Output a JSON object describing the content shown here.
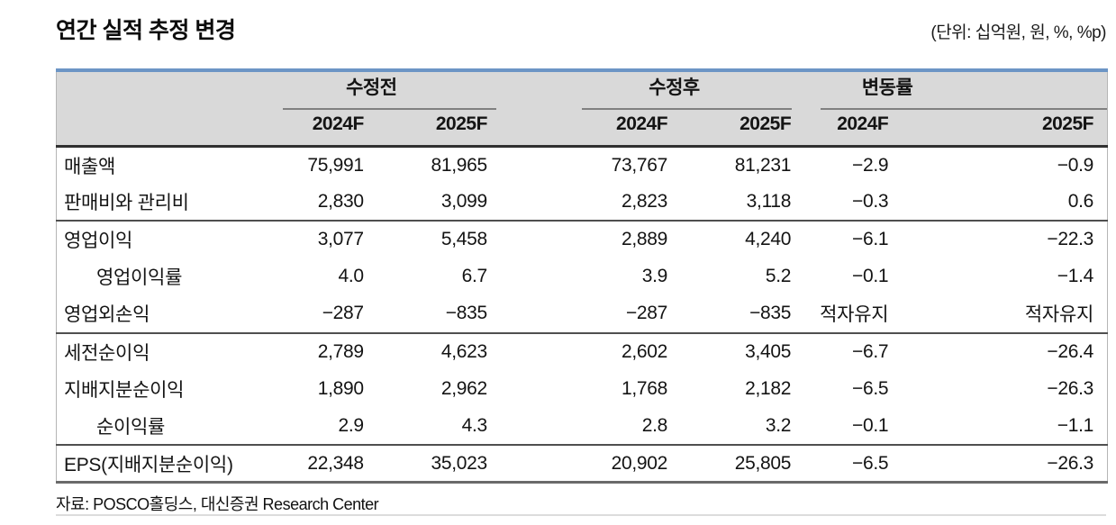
{
  "title": "연간 실적 추정 변경",
  "units_note": "(단위: 십억원, 원, %, %p)",
  "source": "자료: POSCO홀딩스, 대신증권 Research Center",
  "colors": {
    "accent_blue": "#6c95c5",
    "header_bg": "#d9d9d9",
    "header_rule_dark": "#303030",
    "row_separator": "#4f4f4f"
  },
  "table": {
    "groups": [
      {
        "label": "수정전"
      },
      {
        "label": "수정후"
      },
      {
        "label": "변동률"
      }
    ],
    "subheaders": [
      "2024F",
      "2025F",
      "2024F",
      "2025F",
      "2024F",
      "2025F"
    ],
    "rows": [
      {
        "label": "매출액",
        "indent": false,
        "separator": false,
        "values": [
          "75,991",
          "81,965",
          "73,767",
          "81,231",
          "−2.9",
          "−0.9"
        ]
      },
      {
        "label": "판매비와 관리비",
        "indent": false,
        "separator": false,
        "values": [
          "2,830",
          "3,099",
          "2,823",
          "3,118",
          "−0.3",
          "0.6"
        ]
      },
      {
        "label": "영업이익",
        "indent": false,
        "separator": true,
        "values": [
          "3,077",
          "5,458",
          "2,889",
          "4,240",
          "−6.1",
          "−22.3"
        ]
      },
      {
        "label": "영업이익률",
        "indent": true,
        "separator": false,
        "values": [
          "4.0",
          "6.7",
          "3.9",
          "5.2",
          "−0.1",
          "−1.4"
        ]
      },
      {
        "label": "영업외손익",
        "indent": false,
        "separator": false,
        "values": [
          "−287",
          "−835",
          "−287",
          "−835",
          "적자유지",
          "적자유지"
        ]
      },
      {
        "label": "세전순이익",
        "indent": false,
        "separator": true,
        "values": [
          "2,789",
          "4,623",
          "2,602",
          "3,405",
          "−6.7",
          "−26.4"
        ]
      },
      {
        "label": "지배지분순이익",
        "indent": false,
        "separator": false,
        "values": [
          "1,890",
          "2,962",
          "1,768",
          "2,182",
          "−6.5",
          "−26.3"
        ]
      },
      {
        "label": "순이익률",
        "indent": true,
        "separator": false,
        "values": [
          "2.9",
          "4.3",
          "2.8",
          "3.2",
          "−0.1",
          "−1.1"
        ]
      },
      {
        "label": "EPS(지배지분순이익)",
        "indent": false,
        "separator": true,
        "values": [
          "22,348",
          "35,023",
          "20,902",
          "25,805",
          "−6.5",
          "−26.3"
        ]
      }
    ]
  }
}
